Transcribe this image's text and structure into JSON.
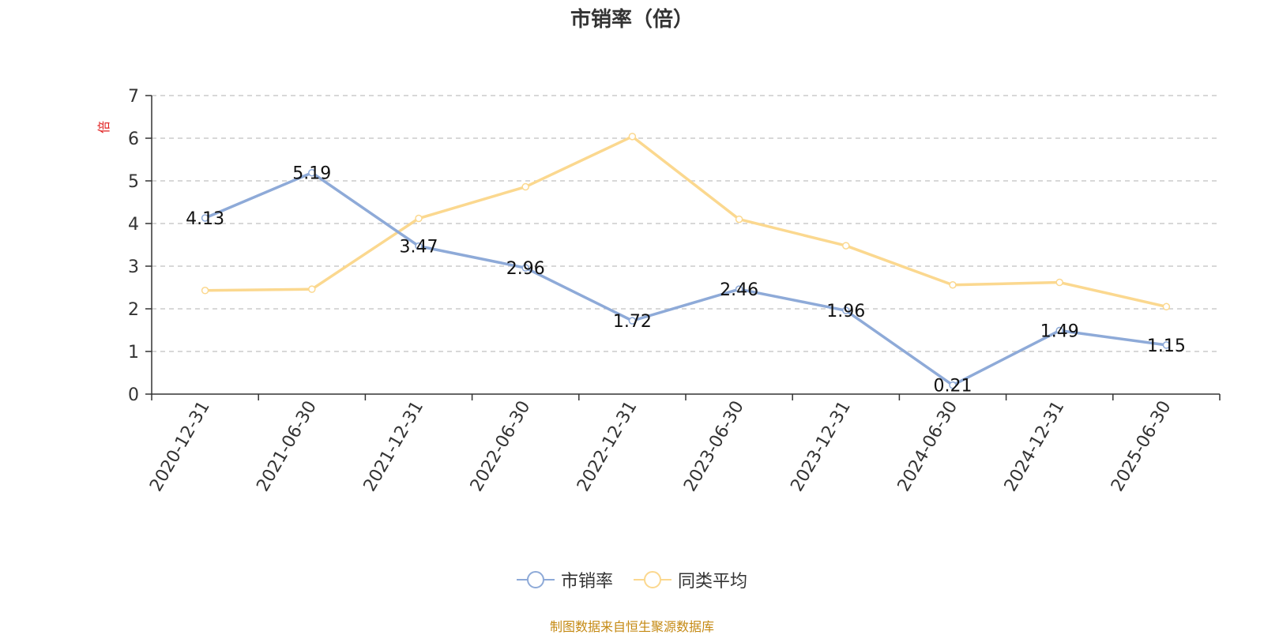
{
  "chart_data": {
    "type": "line",
    "title": "市销率（倍）",
    "ylabel": "倍",
    "xlabel": "",
    "categories": [
      "2020-12-31",
      "2021-06-30",
      "2021-12-31",
      "2022-06-30",
      "2022-12-31",
      "2023-06-30",
      "2023-12-31",
      "2024-06-30",
      "2024-12-31",
      "2025-06-30"
    ],
    "ylim": [
      0,
      7
    ],
    "yticks": [
      0,
      1,
      2,
      3,
      4,
      5,
      6,
      7
    ],
    "grid": true,
    "legend_position": "bottom",
    "series": [
      {
        "name": "市销率",
        "color": "#8eaad8",
        "values": [
          4.13,
          5.19,
          3.47,
          2.96,
          1.72,
          2.46,
          1.96,
          0.21,
          1.49,
          1.15
        ],
        "labels": [
          "4.13",
          "5.19",
          "3.47",
          "2.96",
          "1.72",
          "2.46",
          "1.96",
          "0.21",
          "1.49",
          "1.15"
        ]
      },
      {
        "name": "同类平均",
        "color": "#fbd88f",
        "values": [
          2.43,
          2.46,
          4.12,
          4.86,
          6.04,
          4.1,
          3.48,
          2.56,
          2.62,
          2.05
        ]
      }
    ]
  },
  "source_note": "制图数据来自恒生聚源数据库",
  "colors": {
    "axis": "#333333",
    "grid": "#cccccc",
    "ylabel": "#e02020"
  }
}
